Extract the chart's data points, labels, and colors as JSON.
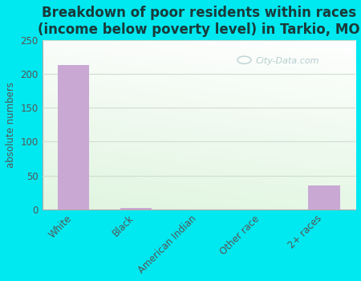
{
  "title": "Breakdown of poor residents within races\n(income below poverty level) in Tarkio, MO",
  "categories": [
    "White",
    "Black",
    "American Indian",
    "Other race",
    "2+ races"
  ],
  "values": [
    213,
    2,
    0,
    0,
    35
  ],
  "bar_color": "#c9a8d4",
  "ylabel": "absolute numbers",
  "ylim": [
    0,
    250
  ],
  "yticks": [
    0,
    50,
    100,
    150,
    200,
    250
  ],
  "outer_background": "#00e8f0",
  "plot_bg_color": "#eef7ee",
  "title_color": "#1a3a3a",
  "title_fontsize": 12,
  "label_fontsize": 8.5,
  "tick_fontsize": 8.5,
  "watermark_text": "City-Data.com",
  "watermark_color": "#aac8c8",
  "grid_color": "#d0ddd0"
}
